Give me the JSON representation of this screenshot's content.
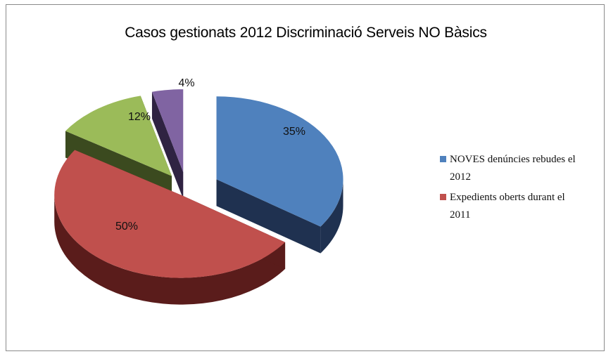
{
  "chart_data": {
    "type": "pie",
    "title": "Casos gestionats 2012 Discriminació Serveis NO Bàsics",
    "slices": [
      {
        "value": 35,
        "label": "35%",
        "color": "#4f81bd",
        "side": "#1f3150"
      },
      {
        "value": 50,
        "label": "50%",
        "color": "#c0504d",
        "side": "#5a1c1b"
      },
      {
        "value": 12,
        "label": "12%",
        "color": "#9bbb59",
        "side": "#3b4a1f"
      },
      {
        "value": 4,
        "label": "4%",
        "color": "#8064a2",
        "side": "#2f2342"
      }
    ],
    "legend": [
      {
        "lines": [
          "NOVES denúncies rebudes el",
          "2012"
        ],
        "color": "#4f81bd"
      },
      {
        "lines": [
          "Expedients oberts durant el",
          "2011"
        ],
        "color": "#c0504d"
      }
    ],
    "legend_position": "right",
    "pie_style": "3d-exploded"
  }
}
